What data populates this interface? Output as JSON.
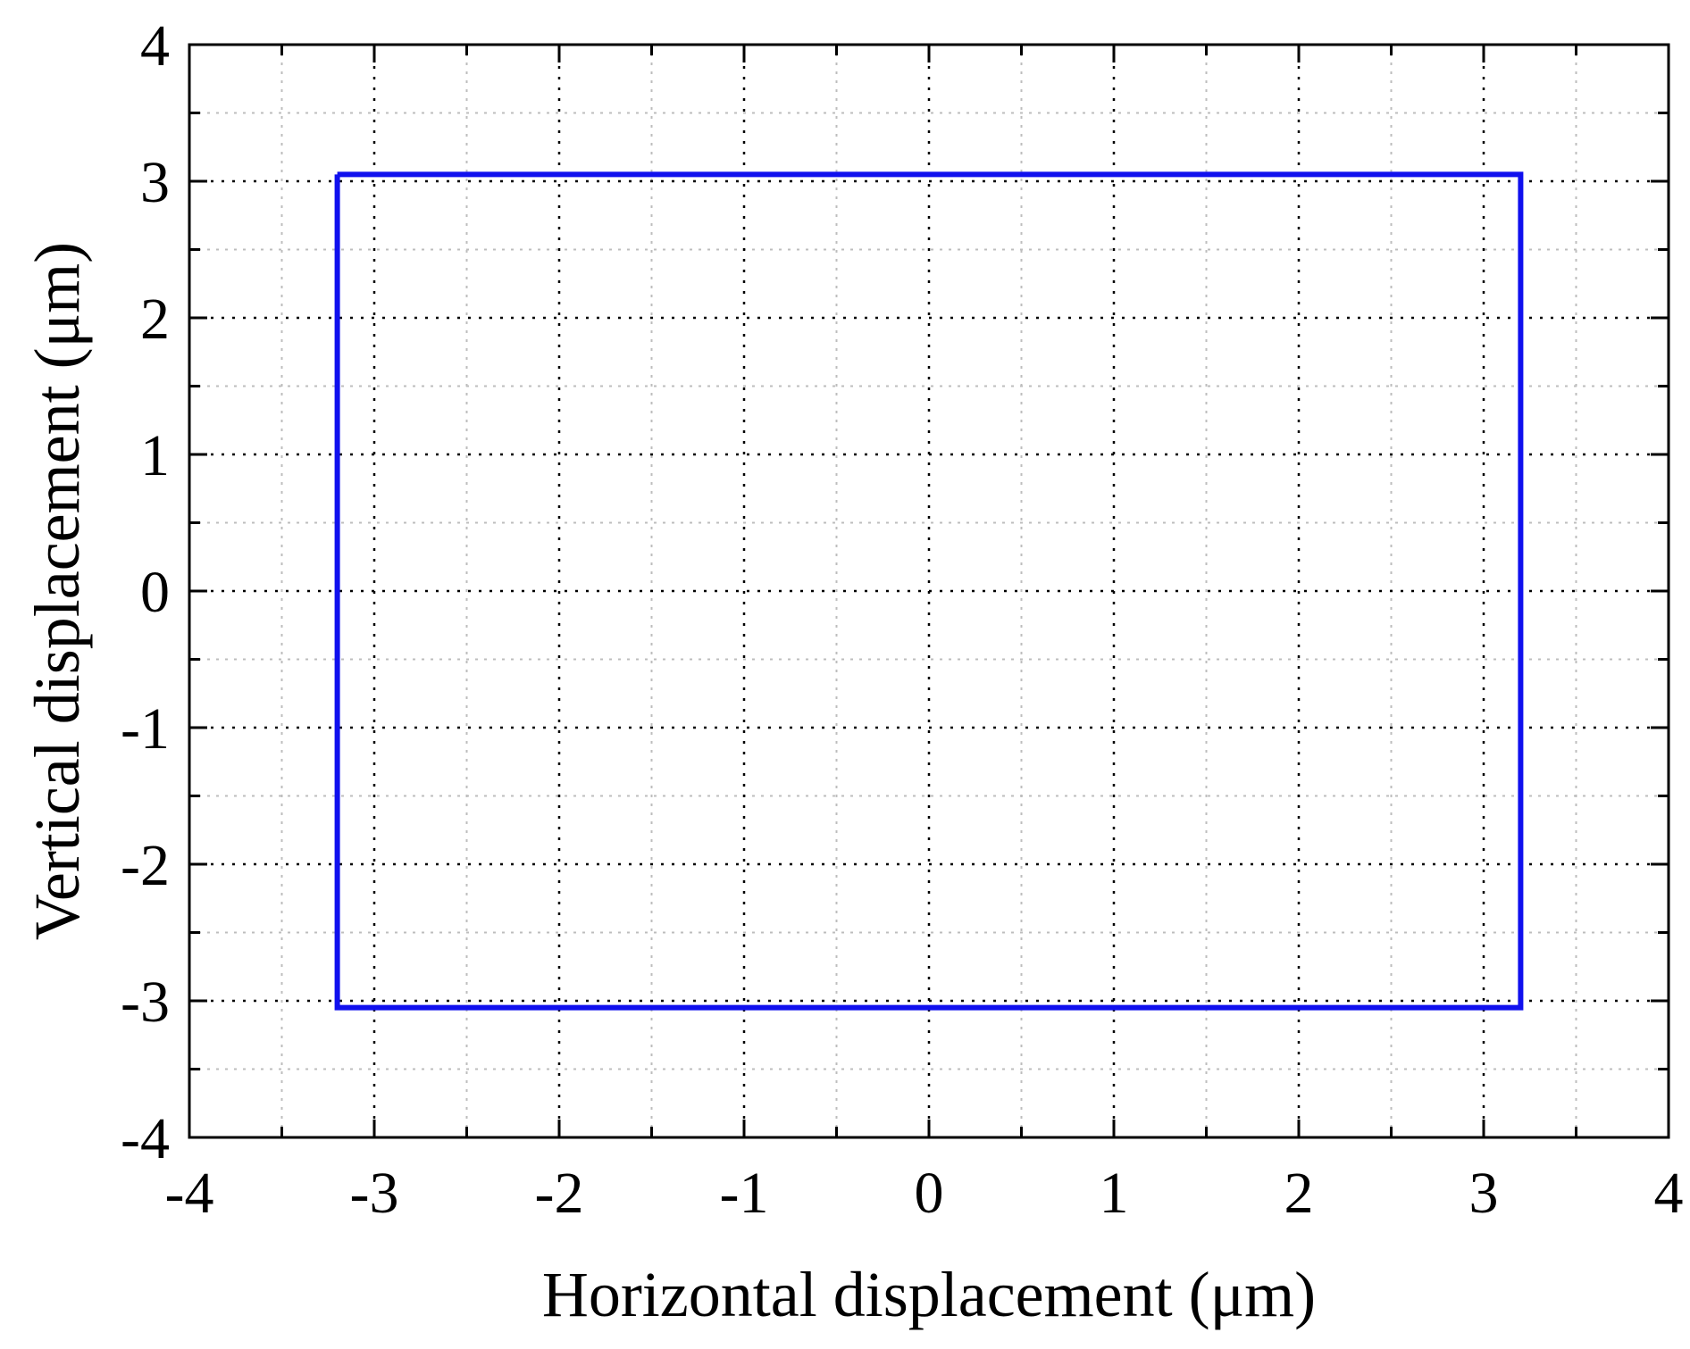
{
  "chart_data": {
    "type": "line",
    "title": "",
    "xlabel": "Horizontal displacement (μm)",
    "ylabel": "Vertical displacement (μm)",
    "xlim": [
      -4,
      4
    ],
    "ylim": [
      -4,
      4
    ],
    "x_ticks": [
      "-4",
      "-3",
      "-2",
      "-1",
      "0",
      "1",
      "2",
      "3",
      "4"
    ],
    "y_ticks": [
      "-4",
      "-3",
      "-2",
      "-1",
      "0",
      "1",
      "2",
      "3",
      "4"
    ],
    "x_tick_values": [
      -4,
      -3,
      -2,
      -1,
      0,
      1,
      2,
      3,
      4
    ],
    "y_tick_values": [
      -4,
      -3,
      -2,
      -1,
      0,
      1,
      2,
      3,
      4
    ],
    "minor_step": 0.5,
    "grid": true,
    "legend": "none",
    "series": [
      {
        "color": "#1010ee",
        "x": [
          -3.2,
          3.2,
          3.2,
          -3.2,
          -3.2
        ],
        "y": [
          3.05,
          3.05,
          -3.05,
          -3.05,
          3.05
        ]
      }
    ]
  }
}
